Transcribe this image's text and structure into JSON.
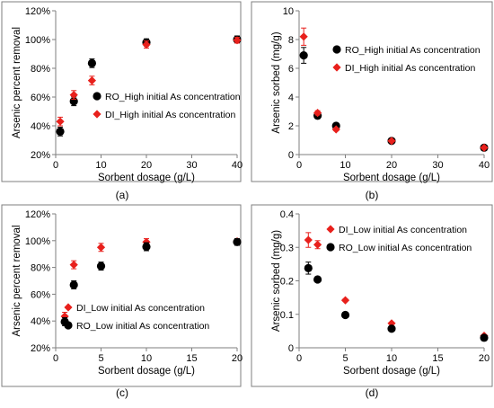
{
  "figure": {
    "colors": {
      "ro": "#000000",
      "di": "#e8201c"
    }
  },
  "chart_data": [
    {
      "type": "scatter",
      "panel_label": "(a)",
      "xlabel": "Sorbent dosage (g/L)",
      "ylabel": "Arsenic percent  removal",
      "xlim": [
        0,
        40
      ],
      "ylim": [
        20,
        120
      ],
      "xticks": [
        "0",
        "10",
        "20",
        "30",
        "40"
      ],
      "yticks": [
        "20%",
        "40%",
        "60%",
        "80%",
        "100%",
        "120%"
      ],
      "grid": false,
      "legend_position": "center-right",
      "series": [
        {
          "key": "ro",
          "name": "RO_High initial As concentration",
          "marker": "circle",
          "x": [
            1,
            4,
            8,
            20,
            40
          ],
          "y": [
            36,
            57,
            83.5,
            98,
            100
          ],
          "err": [
            3,
            3,
            3,
            2.5,
            2.5
          ]
        },
        {
          "key": "di",
          "name": "DI_High initial As concentration",
          "marker": "diamond",
          "x": [
            1,
            4,
            8,
            20,
            40
          ],
          "y": [
            43,
            61.5,
            71.5,
            96.5,
            99.5
          ],
          "err": [
            3,
            3,
            3,
            2.5,
            2
          ]
        }
      ]
    },
    {
      "type": "scatter",
      "panel_label": "(b)",
      "xlabel": "Sorbent dosage (g/L)",
      "ylabel": "Arsenic sorbed (mg/g)",
      "xlim": [
        0,
        40
      ],
      "ylim": [
        0,
        10
      ],
      "xticks": [
        "0",
        "10",
        "20",
        "30",
        "40"
      ],
      "yticks": [
        "0",
        "2",
        "4",
        "6",
        "8",
        "10"
      ],
      "grid": false,
      "legend_position": "top-right",
      "series": [
        {
          "key": "ro",
          "name": "RO_High initial As concentration",
          "marker": "circle",
          "x": [
            1,
            4,
            8,
            20,
            40
          ],
          "y": [
            6.9,
            2.7,
            2.0,
            0.95,
            0.48
          ],
          "err": [
            0.55,
            0.2,
            0.1,
            0.05,
            0.03
          ]
        },
        {
          "key": "di",
          "name": "DI_High initial As concentration",
          "marker": "diamond",
          "x": [
            1,
            4,
            8,
            20,
            40
          ],
          "y": [
            8.2,
            2.9,
            1.75,
            0.95,
            0.48
          ],
          "err": [
            0.6,
            0.15,
            0.1,
            0.05,
            0.03
          ]
        }
      ]
    },
    {
      "type": "scatter",
      "panel_label": "(c)",
      "xlabel": "Sorbent dosage (g/L)",
      "ylabel": "Arsenic percent removal",
      "xlim": [
        0,
        20
      ],
      "ylim": [
        20,
        120
      ],
      "xticks": [
        "0",
        "5",
        "10",
        "15",
        "20"
      ],
      "yticks": [
        "20%",
        "40%",
        "60%",
        "80%",
        "100%",
        "120%"
      ],
      "grid": false,
      "legend_position": "bottom-center",
      "series": [
        {
          "key": "di",
          "name": "DI_Low initial As concentration",
          "marker": "diamond",
          "x": [
            1,
            2,
            5,
            10,
            20
          ],
          "y": [
            43.5,
            82,
            95,
            99,
            99.5
          ],
          "err": [
            3,
            3,
            3,
            2.5,
            2
          ]
        },
        {
          "key": "ro",
          "name": "RO_Low initial As concentration",
          "marker": "circle",
          "x": [
            1,
            2,
            5,
            10,
            20
          ],
          "y": [
            39.5,
            67,
            81,
            95.5,
            99
          ],
          "err": [
            3,
            3,
            3,
            3,
            2.5
          ]
        }
      ]
    },
    {
      "type": "scatter",
      "panel_label": "(d)",
      "xlabel": "Sorbent dosage (g/L)",
      "ylabel": "Arsenic sorbed (mg/g)",
      "xlim": [
        0,
        20
      ],
      "ylim": [
        0,
        0.4
      ],
      "xticks": [
        "0",
        "5",
        "10",
        "15",
        "20"
      ],
      "yticks": [
        "0",
        "0.1",
        "0.2",
        "0.3",
        "0.4"
      ],
      "grid": false,
      "legend_position": "top-right",
      "series": [
        {
          "key": "di",
          "name": "DI_Low initial As concentration",
          "marker": "diamond",
          "x": [
            1,
            2,
            5,
            10,
            20
          ],
          "y": [
            0.322,
            0.308,
            0.142,
            0.073,
            0.036
          ],
          "err": [
            0.022,
            0.012,
            0.004,
            0.003,
            0.002
          ]
        },
        {
          "key": "ro",
          "name": "RO_Low initial As concentration",
          "marker": "circle",
          "x": [
            1,
            2,
            5,
            10,
            20
          ],
          "y": [
            0.238,
            0.204,
            0.098,
            0.057,
            0.03
          ],
          "err": [
            0.018,
            0.005,
            0.004,
            0.003,
            0.002
          ]
        }
      ]
    }
  ]
}
